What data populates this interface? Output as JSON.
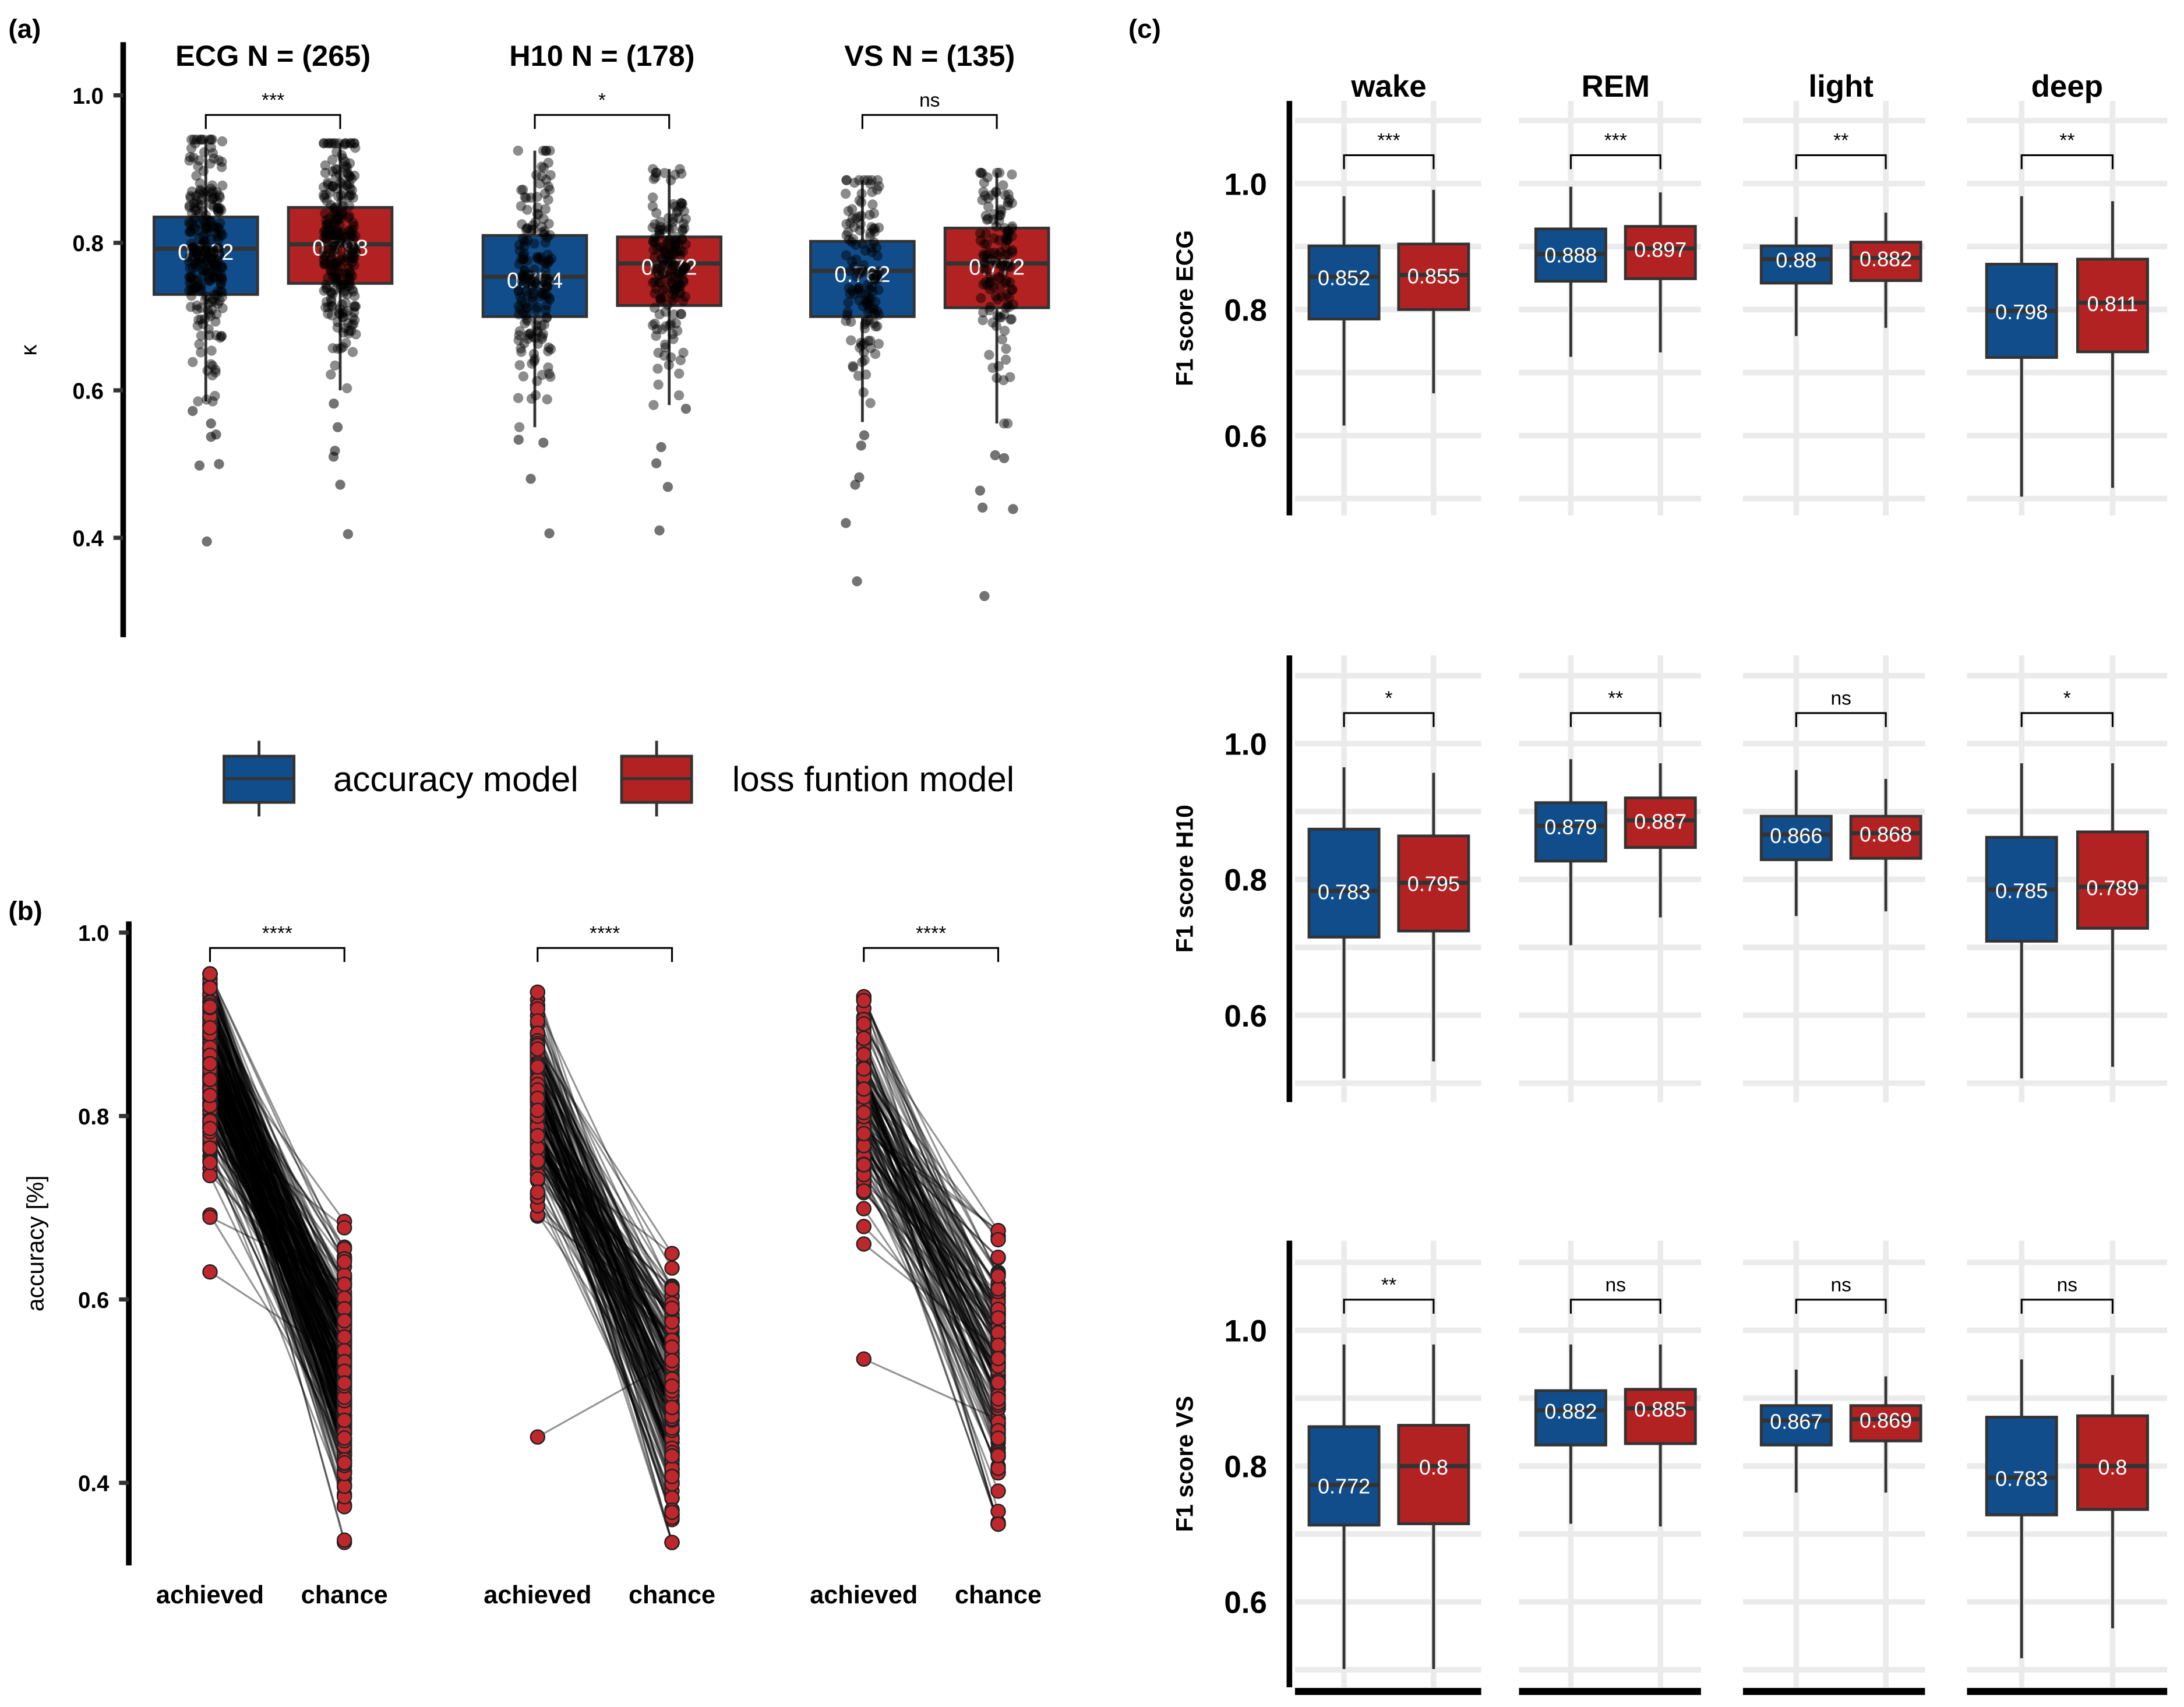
{
  "panel_labels": {
    "a": "(a)",
    "b": "(b)",
    "c": "(c)"
  },
  "colors": {
    "accuracy": "#114d8b",
    "loss": "#b22222",
    "box_border": "#333333",
    "grid": "#ebebeb",
    "point_red": "#c0272d"
  },
  "legend": {
    "accuracy": "accuracy model",
    "loss": "loss funtion model"
  },
  "chart_data": [
    {
      "id": "a",
      "type": "box",
      "ylabel": "κ",
      "ylim": [
        0.265,
        1.03
      ],
      "ytick_labels": [
        "0.4",
        "0.6",
        "0.8",
        "1.0"
      ],
      "groups": [
        {
          "title": "ECG N = (265)",
          "n": 265,
          "significance": "***",
          "boxes": [
            {
              "model": "accuracy",
              "q1": 0.73,
              "median": 0.792,
              "q3": 0.835,
              "whisker_low": 0.585,
              "whisker_high": 0.94,
              "label": "0.792",
              "outliers": [
                0.395,
                0.498,
                0.5,
                0.537,
                0.54,
                0.555,
                0.572
              ]
            },
            {
              "model": "loss",
              "q1": 0.745,
              "median": 0.798,
              "q3": 0.848,
              "whisker_low": 0.6,
              "whisker_high": 0.935,
              "label": "0.798",
              "outliers": [
                0.405,
                0.472,
                0.51,
                0.518,
                0.55,
                0.582
              ]
            }
          ]
        },
        {
          "title": "H10 N = (178)",
          "n": 178,
          "significance": "*",
          "boxes": [
            {
              "model": "accuracy",
              "q1": 0.7,
              "median": 0.754,
              "q3": 0.81,
              "whisker_low": 0.55,
              "whisker_high": 0.925,
              "label": "0.754",
              "outliers": [
                0.406,
                0.48,
                0.529,
                0.533
              ]
            },
            {
              "model": "loss",
              "q1": 0.715,
              "median": 0.772,
              "q3": 0.808,
              "whisker_low": 0.58,
              "whisker_high": 0.9,
              "label": "0.772",
              "outliers": [
                0.41,
                0.469,
                0.501,
                0.523,
                0.575
              ]
            }
          ]
        },
        {
          "title": "VS N = (135)",
          "n": 135,
          "significance": "ns",
          "boxes": [
            {
              "model": "accuracy",
              "q1": 0.7,
              "median": 0.762,
              "q3": 0.802,
              "whisker_low": 0.557,
              "whisker_high": 0.885,
              "label": "0.762",
              "outliers": [
                0.341,
                0.42,
                0.472,
                0.482,
                0.525,
                0.539
              ]
            },
            {
              "model": "loss",
              "q1": 0.712,
              "median": 0.772,
              "q3": 0.82,
              "whisker_low": 0.555,
              "whisker_high": 0.895,
              "label": "0.772",
              "outliers": [
                0.321,
                0.439,
                0.441,
                0.464,
                0.508,
                0.512
              ]
            }
          ]
        }
      ]
    },
    {
      "id": "b",
      "type": "scatter",
      "subtype": "paired",
      "ylabel": "accuracy [%]",
      "ylim": [
        0.3,
        1.01
      ],
      "ytick_labels": [
        "0.4",
        "0.6",
        "0.8",
        "1.0"
      ],
      "categories": [
        "achieved",
        "chance"
      ],
      "groups": [
        {
          "n": 265,
          "significance": "****",
          "achieved_mean": 0.85,
          "achieved_range": [
            0.63,
            0.955
          ],
          "chance_mean": 0.52,
          "chance_range": [
            0.335,
            0.685
          ]
        },
        {
          "n": 178,
          "significance": "****",
          "achieved_mean": 0.82,
          "achieved_range": [
            0.45,
            0.935
          ],
          "chance_mean": 0.5,
          "chance_range": [
            0.335,
            0.65
          ]
        },
        {
          "n": 135,
          "significance": "****",
          "achieved_mean": 0.82,
          "achieved_range": [
            0.535,
            0.93
          ],
          "chance_mean": 0.53,
          "chance_range": [
            0.355,
            0.675
          ]
        }
      ]
    },
    {
      "id": "c",
      "type": "box",
      "facets": [
        "wake",
        "REM",
        "light",
        "deep"
      ],
      "ytick_labels": [
        "0.6",
        "0.8",
        "1.0"
      ],
      "rows": [
        {
          "ylabel": "F1 score ECG",
          "cells": [
            {
              "significance": "***",
              "boxes": [
                {
                  "model": "accuracy",
                  "q1": 0.785,
                  "median": 0.852,
                  "q3": 0.901,
                  "whisker_low": 0.616,
                  "whisker_high": 0.98,
                  "label": "0.852"
                },
                {
                  "model": "loss",
                  "q1": 0.8,
                  "median": 0.855,
                  "q3": 0.904,
                  "whisker_low": 0.667,
                  "whisker_high": 0.99,
                  "label": "0.855"
                }
              ]
            },
            {
              "significance": "***",
              "boxes": [
                {
                  "model": "accuracy",
                  "q1": 0.845,
                  "median": 0.888,
                  "q3": 0.928,
                  "whisker_low": 0.725,
                  "whisker_high": 0.995,
                  "label": "0.888"
                },
                {
                  "model": "loss",
                  "q1": 0.849,
                  "median": 0.897,
                  "q3": 0.932,
                  "whisker_low": 0.732,
                  "whisker_high": 0.986,
                  "label": "0.897"
                }
              ]
            },
            {
              "significance": "**",
              "boxes": [
                {
                  "model": "accuracy",
                  "q1": 0.842,
                  "median": 0.88,
                  "q3": 0.901,
                  "whisker_low": 0.758,
                  "whisker_high": 0.947,
                  "label": "0.88"
                },
                {
                  "model": "loss",
                  "q1": 0.846,
                  "median": 0.882,
                  "q3": 0.907,
                  "whisker_low": 0.771,
                  "whisker_high": 0.954,
                  "label": "0.882"
                }
              ]
            },
            {
              "significance": "**",
              "boxes": [
                {
                  "model": "accuracy",
                  "q1": 0.724,
                  "median": 0.798,
                  "q3": 0.872,
                  "whisker_low": 0.503,
                  "whisker_high": 0.98,
                  "label": "0.798"
                },
                {
                  "model": "loss",
                  "q1": 0.733,
                  "median": 0.811,
                  "q3": 0.88,
                  "whisker_low": 0.517,
                  "whisker_high": 0.972,
                  "label": "0.811"
                }
              ]
            }
          ]
        },
        {
          "ylabel": "F1 score H10",
          "cells": [
            {
              "significance": "*",
              "boxes": [
                {
                  "model": "accuracy",
                  "q1": 0.715,
                  "median": 0.783,
                  "q3": 0.874,
                  "whisker_low": 0.507,
                  "whisker_high": 0.965,
                  "label": "0.783"
                },
                {
                  "model": "loss",
                  "q1": 0.724,
                  "median": 0.795,
                  "q3": 0.864,
                  "whisker_low": 0.532,
                  "whisker_high": 0.957,
                  "label": "0.795"
                }
              ]
            },
            {
              "significance": "**",
              "boxes": [
                {
                  "model": "accuracy",
                  "q1": 0.827,
                  "median": 0.879,
                  "q3": 0.913,
                  "whisker_low": 0.703,
                  "whisker_high": 0.977,
                  "label": "0.879"
                },
                {
                  "model": "loss",
                  "q1": 0.847,
                  "median": 0.887,
                  "q3": 0.92,
                  "whisker_low": 0.744,
                  "whisker_high": 0.971,
                  "label": "0.887"
                }
              ]
            },
            {
              "significance": "ns",
              "boxes": [
                {
                  "model": "accuracy",
                  "q1": 0.829,
                  "median": 0.866,
                  "q3": 0.893,
                  "whisker_low": 0.746,
                  "whisker_high": 0.961,
                  "label": "0.866"
                },
                {
                  "model": "loss",
                  "q1": 0.831,
                  "median": 0.868,
                  "q3": 0.893,
                  "whisker_low": 0.753,
                  "whisker_high": 0.948,
                  "label": "0.868"
                }
              ]
            },
            {
              "significance": "*",
              "boxes": [
                {
                  "model": "accuracy",
                  "q1": 0.709,
                  "median": 0.785,
                  "q3": 0.862,
                  "whisker_low": 0.507,
                  "whisker_high": 0.971,
                  "label": "0.785"
                },
                {
                  "model": "loss",
                  "q1": 0.728,
                  "median": 0.789,
                  "q3": 0.87,
                  "whisker_low": 0.524,
                  "whisker_high": 0.971,
                  "label": "0.789"
                }
              ]
            }
          ]
        },
        {
          "ylabel": "F1 score VS",
          "cells": [
            {
              "significance": "**",
              "boxes": [
                {
                  "model": "accuracy",
                  "q1": 0.713,
                  "median": 0.772,
                  "q3": 0.858,
                  "whisker_low": 0.501,
                  "whisker_high": 0.979,
                  "label": "0.772"
                },
                {
                  "model": "loss",
                  "q1": 0.715,
                  "median": 0.8,
                  "q3": 0.86,
                  "whisker_low": 0.501,
                  "whisker_high": 0.979,
                  "label": "0.8"
                }
              ]
            },
            {
              "significance": "ns",
              "boxes": [
                {
                  "model": "accuracy",
                  "q1": 0.831,
                  "median": 0.882,
                  "q3": 0.911,
                  "whisker_low": 0.715,
                  "whisker_high": 0.979,
                  "label": "0.882"
                },
                {
                  "model": "loss",
                  "q1": 0.833,
                  "median": 0.885,
                  "q3": 0.913,
                  "whisker_low": 0.711,
                  "whisker_high": 0.979,
                  "label": "0.885"
                }
              ]
            },
            {
              "significance": "ns",
              "boxes": [
                {
                  "model": "accuracy",
                  "q1": 0.831,
                  "median": 0.867,
                  "q3": 0.889,
                  "whisker_low": 0.761,
                  "whisker_high": 0.942,
                  "label": "0.867"
                },
                {
                  "model": "loss",
                  "q1": 0.837,
                  "median": 0.869,
                  "q3": 0.889,
                  "whisker_low": 0.761,
                  "whisker_high": 0.932,
                  "label": "0.869"
                }
              ]
            },
            {
              "significance": "ns",
              "boxes": [
                {
                  "model": "accuracy",
                  "q1": 0.728,
                  "median": 0.783,
                  "q3": 0.872,
                  "whisker_low": 0.517,
                  "whisker_high": 0.957,
                  "label": "0.783"
                },
                {
                  "model": "loss",
                  "q1": 0.736,
                  "median": 0.8,
                  "q3": 0.874,
                  "whisker_low": 0.561,
                  "whisker_high": 0.934,
                  "label": "0.8"
                }
              ]
            }
          ]
        }
      ]
    }
  ]
}
